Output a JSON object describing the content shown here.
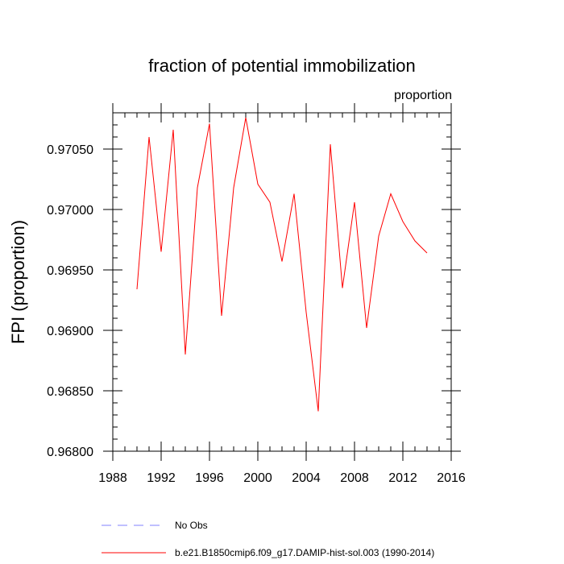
{
  "chart_data": {
    "type": "line",
    "title": "fraction of potential immobilization",
    "units_label": "proportion",
    "ylabel": "FPI  (proportion)",
    "xlabel": "",
    "xlim": [
      1988,
      2016
    ],
    "ylim": [
      0.968,
      0.9708
    ],
    "x_ticks": [
      1988,
      1992,
      1996,
      2000,
      2004,
      2008,
      2012,
      2016
    ],
    "x_tick_labels": [
      "1988",
      "1992",
      "1996",
      "2000",
      "2004",
      "2008",
      "2012",
      "2016"
    ],
    "y_ticks": [
      0.968,
      0.9685,
      0.969,
      0.9695,
      0.97,
      0.9705
    ],
    "y_tick_labels": [
      "0.96800",
      "0.96850",
      "0.96900",
      "0.96950",
      "0.97000",
      "0.97050"
    ],
    "grid": false,
    "series": [
      {
        "name": "b.e21.B1850cmip6.f09_g17.DAMIP-hist-sol.003 (1990-2014)",
        "color": "#ff0000",
        "style": "solid",
        "x": [
          1990,
          1991,
          1992,
          1993,
          1994,
          1995,
          1996,
          1997,
          1998,
          1999,
          2000,
          2001,
          2002,
          2003,
          2004,
          2005,
          2006,
          2007,
          2008,
          2009,
          2010,
          2011,
          2012,
          2013,
          2014
        ],
        "y": [
          0.96934,
          0.9706,
          0.96965,
          0.97066,
          0.9688,
          0.97018,
          0.97071,
          0.96912,
          0.97018,
          0.97076,
          0.97021,
          0.97006,
          0.96957,
          0.97013,
          0.96915,
          0.96833,
          0.97054,
          0.96935,
          0.97006,
          0.96902,
          0.96978,
          0.97013,
          0.9699,
          0.96974,
          0.96964
        ]
      }
    ],
    "legend": {
      "placement": "bottom",
      "entries": [
        {
          "label": "No Obs",
          "color": "#8080ff",
          "style": "dashed"
        },
        {
          "label": "b.e21.B1850cmip6.f09_g17.DAMIP-hist-sol.003 (1990-2014)",
          "color": "#ff0000",
          "style": "solid"
        }
      ]
    }
  }
}
